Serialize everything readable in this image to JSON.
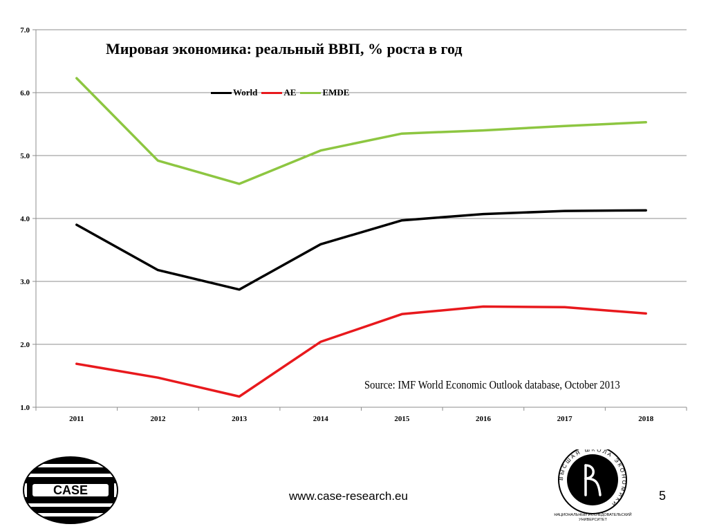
{
  "chart_data": {
    "type": "line",
    "title": "Мировая экономика: реальный ВВП, % роста в год",
    "xlabel": "",
    "ylabel": "",
    "categories": [
      "2011",
      "2012",
      "2013",
      "2014",
      "2015",
      "2016",
      "2017",
      "2018"
    ],
    "ylim": [
      1.0,
      7.0
    ],
    "yticks": [
      "1.0",
      "2.0",
      "3.0",
      "4.0",
      "5.0",
      "6.0",
      "7.0"
    ],
    "grid": true,
    "legend_position": "top-center",
    "series": [
      {
        "name": "World",
        "color": "#000000",
        "values": [
          3.9,
          3.18,
          2.87,
          3.59,
          3.97,
          4.07,
          4.12,
          4.13
        ]
      },
      {
        "name": "AE",
        "color": "#e8191d",
        "values": [
          1.69,
          1.47,
          1.17,
          2.04,
          2.48,
          2.6,
          2.59,
          2.49
        ]
      },
      {
        "name": "EMDE",
        "color": "#8dc641",
        "values": [
          6.23,
          4.92,
          4.55,
          5.08,
          5.35,
          5.4,
          5.47,
          5.53
        ]
      }
    ],
    "annotations": [
      "Source: IMF World Economic Outlook database, October 2013"
    ]
  },
  "footer": {
    "url": "www.case-research.eu",
    "page_number": "5"
  },
  "logos": {
    "case": {
      "text": "CASE",
      "icon": "case-logo"
    },
    "hse": {
      "icon": "hse-emblem-logo",
      "ring_text": "ВЫСШАЯ ШКОЛА ЭКОНОМИКИ",
      "caption_line1": "НАЦИОНАЛЬНЫЙ ИССЛЕДОВАТЕЛЬСКИЙ",
      "caption_line2": "УНИВЕРСИТЕТ"
    }
  }
}
